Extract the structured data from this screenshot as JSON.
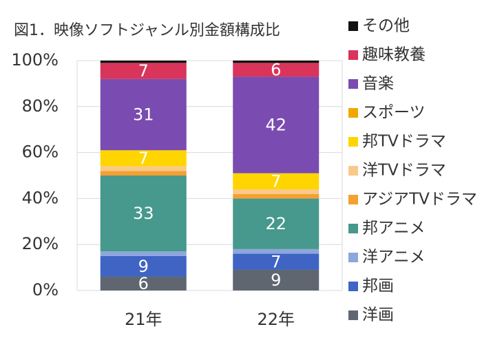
{
  "chart_data": {
    "type": "stacked_bar",
    "title": "図1．映像ソフトジャンル別金額構成比",
    "categories": [
      "21年",
      "22年"
    ],
    "series": [
      {
        "name": "洋画",
        "color": "#5f6670",
        "values": [
          6,
          9
        ]
      },
      {
        "name": "邦画",
        "color": "#3f64c4",
        "values": [
          9,
          7
        ]
      },
      {
        "name": "洋アニメ",
        "color": "#8ea6dc",
        "values": [
          2,
          2
        ]
      },
      {
        "name": "邦アニメ",
        "color": "#46998c",
        "values": [
          33,
          22
        ]
      },
      {
        "name": "アジアTVドラマ",
        "color": "#f5a030",
        "values": [
          2,
          2
        ]
      },
      {
        "name": "洋TVドラマ",
        "color": "#f9c98a",
        "values": [
          2,
          2
        ]
      },
      {
        "name": "邦TVドラマ",
        "color": "#ffd500",
        "values": [
          7,
          7
        ]
      },
      {
        "name": "スポーツ",
        "color": "#f0a800",
        "values": [
          0,
          0
        ]
      },
      {
        "name": "音楽",
        "color": "#7a4bb0",
        "values": [
          31,
          42
        ]
      },
      {
        "name": "趣味教養",
        "color": "#d9345a",
        "values": [
          7,
          6
        ]
      },
      {
        "name": "その他",
        "color": "#111111",
        "values": [
          1,
          1
        ]
      }
    ],
    "ylim": [
      0,
      100
    ],
    "yticks": [
      {
        "value": 0,
        "label": "0%"
      },
      {
        "value": 20,
        "label": "20%"
      },
      {
        "value": 40,
        "label": "40%"
      },
      {
        "value": 60,
        "label": "60%"
      },
      {
        "value": 80,
        "label": "80%"
      },
      {
        "value": 100,
        "label": "100%"
      }
    ],
    "grid": true
  }
}
